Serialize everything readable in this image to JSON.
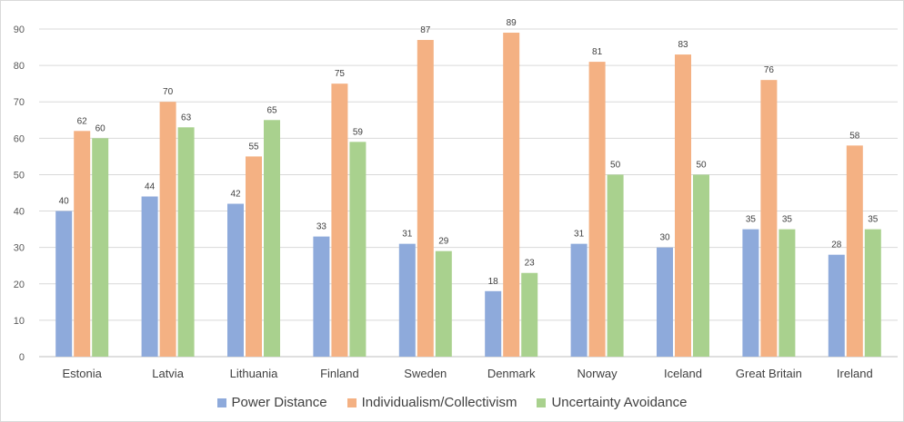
{
  "chart_data": {
    "type": "bar",
    "title": "",
    "xlabel": "",
    "ylabel": "",
    "ylim": [
      0,
      90
    ],
    "yticks": [
      0,
      10,
      20,
      30,
      40,
      50,
      60,
      70,
      80,
      90
    ],
    "grid": true,
    "legend_position": "bottom",
    "categories": [
      "Estonia",
      "Latvia",
      "Lithuania",
      "Finland",
      "Sweden",
      "Denmark",
      "Norway",
      "Iceland",
      "Great Britain",
      "Ireland"
    ],
    "series": [
      {
        "name": "Power Distance",
        "color": "#8eaadb",
        "values": [
          40,
          44,
          42,
          33,
          31,
          18,
          31,
          30,
          35,
          28
        ]
      },
      {
        "name": "Individualism/Collectivism",
        "color": "#f4b183",
        "values": [
          62,
          70,
          55,
          75,
          87,
          89,
          81,
          83,
          76,
          58
        ]
      },
      {
        "name": "Uncertainty Avoidance",
        "color": "#a9d18e",
        "values": [
          60,
          63,
          65,
          59,
          29,
          23,
          50,
          50,
          35,
          35
        ]
      }
    ]
  }
}
